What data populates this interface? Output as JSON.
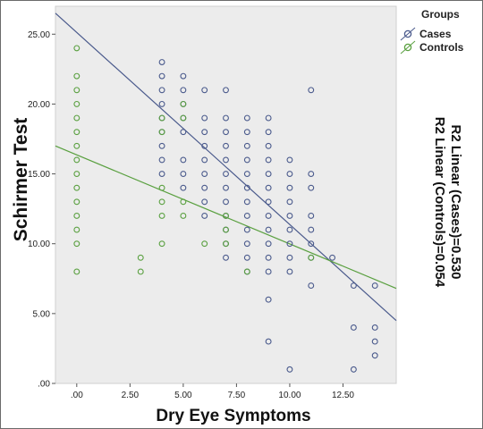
{
  "chart_data": {
    "type": "scatter",
    "xlabel": "Dry Eye Symptoms",
    "ylabel": "Schirmer Test",
    "xlim": [
      -1,
      15
    ],
    "ylim": [
      0,
      27
    ],
    "x_ticks": [
      ".00",
      "2.50",
      "5.00",
      "7.50",
      "10.00",
      "12.50"
    ],
    "y_ticks": [
      ".00",
      "5.00",
      "10.00",
      "15.00",
      "20.00",
      "25.00"
    ],
    "legend": {
      "title": "Groups",
      "placement": "top-right",
      "entries": [
        "Cases",
        "Controls"
      ]
    },
    "r2_labels": [
      "R2 Linear (Cases)=0.530",
      "R2 Linear (Controls)=0.054"
    ],
    "series": [
      {
        "name": "Cases",
        "color": "#4a5a8c",
        "fit_line": {
          "x": [
            -1,
            15
          ],
          "y": [
            26.5,
            4.5
          ]
        },
        "points": [
          [
            4,
            23
          ],
          [
            4,
            22
          ],
          [
            4,
            21
          ],
          [
            4,
            20
          ],
          [
            4,
            19
          ],
          [
            4,
            18
          ],
          [
            4,
            17
          ],
          [
            4,
            16
          ],
          [
            4,
            15
          ],
          [
            5,
            22
          ],
          [
            5,
            21
          ],
          [
            5,
            20
          ],
          [
            5,
            19
          ],
          [
            5,
            18
          ],
          [
            5,
            16
          ],
          [
            5,
            15
          ],
          [
            5,
            14
          ],
          [
            6,
            21
          ],
          [
            6,
            19
          ],
          [
            6,
            18
          ],
          [
            6,
            17
          ],
          [
            6,
            16
          ],
          [
            6,
            15
          ],
          [
            6,
            14
          ],
          [
            6,
            13
          ],
          [
            6,
            12
          ],
          [
            7,
            21
          ],
          [
            7,
            19
          ],
          [
            7,
            18
          ],
          [
            7,
            17
          ],
          [
            7,
            16
          ],
          [
            7,
            15
          ],
          [
            7,
            14
          ],
          [
            7,
            13
          ],
          [
            7,
            12
          ],
          [
            7,
            11
          ],
          [
            7,
            10
          ],
          [
            7,
            9
          ],
          [
            8,
            19
          ],
          [
            8,
            18
          ],
          [
            8,
            17
          ],
          [
            8,
            16
          ],
          [
            8,
            15
          ],
          [
            8,
            14
          ],
          [
            8,
            13
          ],
          [
            8,
            12
          ],
          [
            8,
            11
          ],
          [
            8,
            10
          ],
          [
            8,
            9
          ],
          [
            8,
            8
          ],
          [
            9,
            19
          ],
          [
            9,
            18
          ],
          [
            9,
            17
          ],
          [
            9,
            16
          ],
          [
            9,
            15
          ],
          [
            9,
            14
          ],
          [
            9,
            13
          ],
          [
            9,
            12
          ],
          [
            9,
            11
          ],
          [
            9,
            10
          ],
          [
            9,
            9
          ],
          [
            9,
            8
          ],
          [
            9,
            6
          ],
          [
            9,
            3
          ],
          [
            10,
            16
          ],
          [
            10,
            15
          ],
          [
            10,
            14
          ],
          [
            10,
            13
          ],
          [
            10,
            12
          ],
          [
            10,
            11
          ],
          [
            10,
            10
          ],
          [
            10,
            9
          ],
          [
            10,
            8
          ],
          [
            10,
            1
          ],
          [
            11,
            21
          ],
          [
            11,
            15
          ],
          [
            11,
            14
          ],
          [
            11,
            12
          ],
          [
            11,
            11
          ],
          [
            11,
            10
          ],
          [
            11,
            9
          ],
          [
            11,
            7
          ],
          [
            12,
            9
          ],
          [
            13,
            7
          ],
          [
            13,
            4
          ],
          [
            13,
            1
          ],
          [
            14,
            7
          ],
          [
            14,
            4
          ],
          [
            14,
            3
          ],
          [
            14,
            2
          ]
        ]
      },
      {
        "name": "Controls",
        "color": "#5aa040",
        "fit_line": {
          "x": [
            -1,
            15
          ],
          "y": [
            17.0,
            6.8
          ]
        },
        "points": [
          [
            0,
            24
          ],
          [
            0,
            22
          ],
          [
            0,
            21
          ],
          [
            0,
            20
          ],
          [
            0,
            19
          ],
          [
            0,
            18
          ],
          [
            0,
            17
          ],
          [
            0,
            16
          ],
          [
            0,
            15
          ],
          [
            0,
            14
          ],
          [
            0,
            13
          ],
          [
            0,
            12
          ],
          [
            0,
            11
          ],
          [
            0,
            10
          ],
          [
            0,
            8
          ],
          [
            3,
            9
          ],
          [
            3,
            8
          ],
          [
            4,
            19
          ],
          [
            4,
            18
          ],
          [
            4,
            14
          ],
          [
            4,
            13
          ],
          [
            4,
            12
          ],
          [
            4,
            10
          ],
          [
            5,
            20
          ],
          [
            5,
            19
          ],
          [
            5,
            13
          ],
          [
            5,
            12
          ],
          [
            6,
            10
          ],
          [
            7,
            12
          ],
          [
            7,
            11
          ],
          [
            7,
            10
          ],
          [
            8,
            8
          ],
          [
            11,
            9
          ]
        ]
      }
    ]
  }
}
